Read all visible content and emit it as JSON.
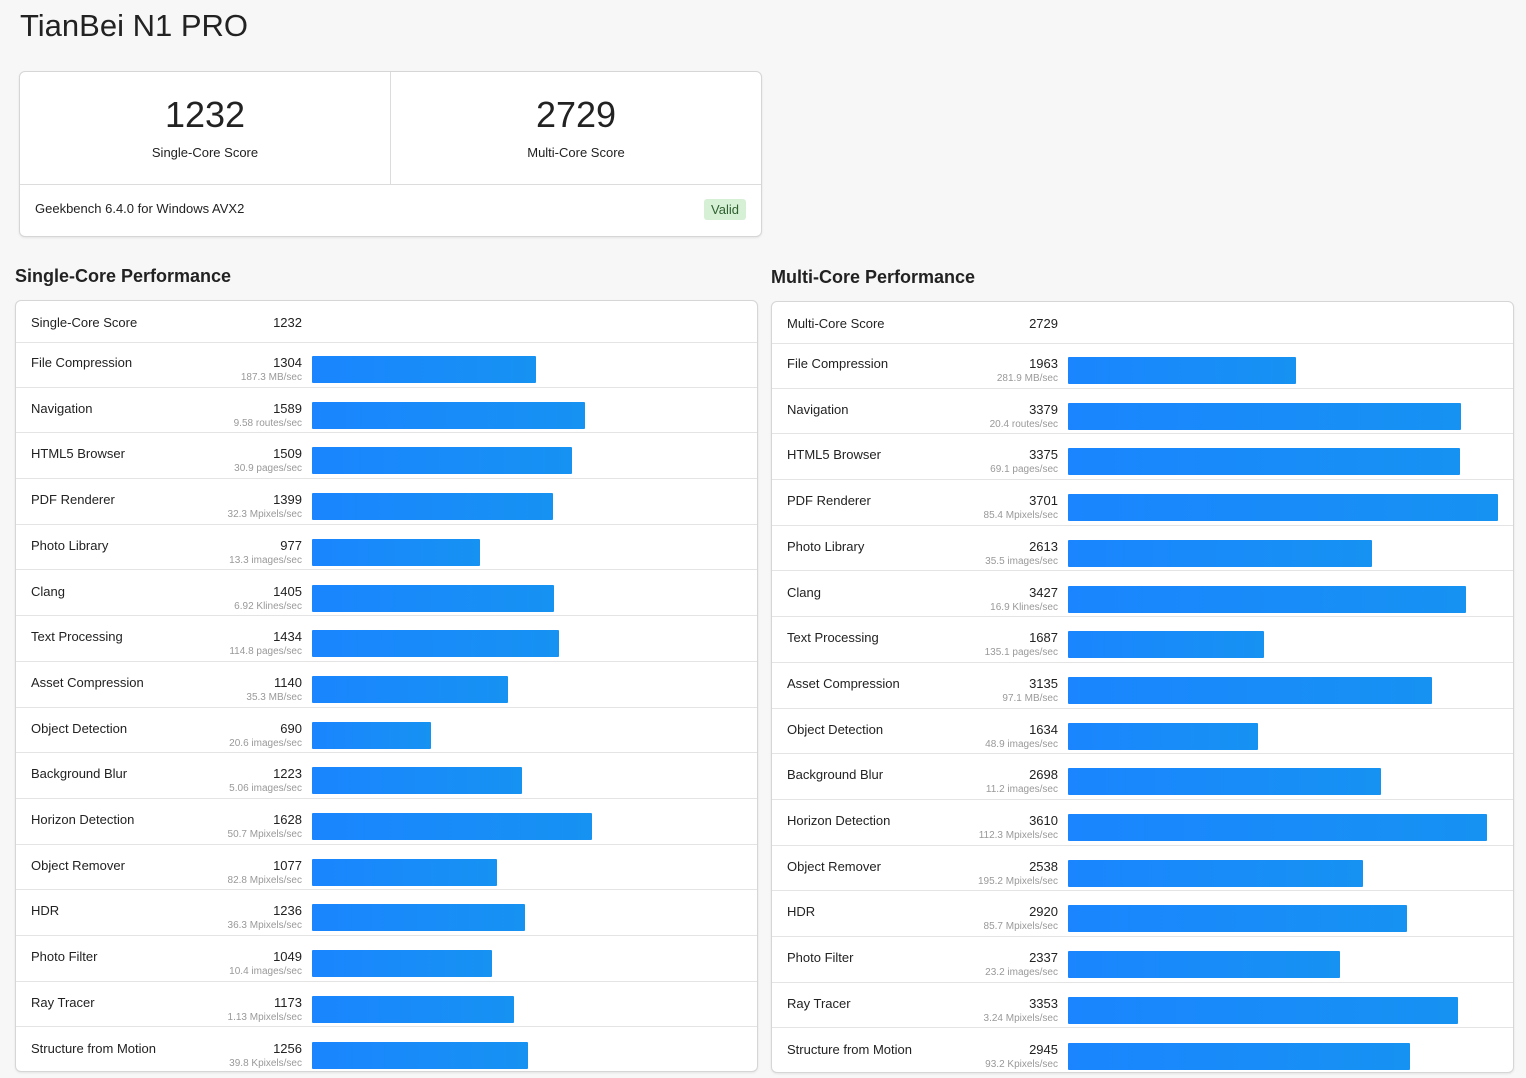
{
  "title": "TianBei N1 PRO",
  "scores": {
    "single": {
      "value": "1232",
      "label": "Single-Core Score"
    },
    "multi": {
      "value": "2729",
      "label": "Multi-Core Score"
    },
    "version": "Geekbench 6.4.0 for Windows AVX2",
    "status": "Valid"
  },
  "single_core": {
    "title": "Single-Core Performance",
    "header": {
      "name": "Single-Core Score",
      "score": "1232"
    },
    "max_score": 2500,
    "tests": [
      {
        "name": "File Compression",
        "score": 1304,
        "unit": "187.3 MB/sec"
      },
      {
        "name": "Navigation",
        "score": 1589,
        "unit": "9.58 routes/sec"
      },
      {
        "name": "HTML5 Browser",
        "score": 1509,
        "unit": "30.9 pages/sec"
      },
      {
        "name": "PDF Renderer",
        "score": 1399,
        "unit": "32.3 Mpixels/sec"
      },
      {
        "name": "Photo Library",
        "score": 977,
        "unit": "13.3 images/sec"
      },
      {
        "name": "Clang",
        "score": 1405,
        "unit": "6.92 Klines/sec"
      },
      {
        "name": "Text Processing",
        "score": 1434,
        "unit": "114.8 pages/sec"
      },
      {
        "name": "Asset Compression",
        "score": 1140,
        "unit": "35.3 MB/sec"
      },
      {
        "name": "Object Detection",
        "score": 690,
        "unit": "20.6 images/sec"
      },
      {
        "name": "Background Blur",
        "score": 1223,
        "unit": "5.06 images/sec"
      },
      {
        "name": "Horizon Detection",
        "score": 1628,
        "unit": "50.7 Mpixels/sec"
      },
      {
        "name": "Object Remover",
        "score": 1077,
        "unit": "82.8 Mpixels/sec"
      },
      {
        "name": "HDR",
        "score": 1236,
        "unit": "36.3 Mpixels/sec"
      },
      {
        "name": "Photo Filter",
        "score": 1049,
        "unit": "10.4 images/sec"
      },
      {
        "name": "Ray Tracer",
        "score": 1173,
        "unit": "1.13 Mpixels/sec"
      },
      {
        "name": "Structure from Motion",
        "score": 1256,
        "unit": "39.8 Kpixels/sec"
      }
    ]
  },
  "multi_core": {
    "title": "Multi-Core Performance",
    "header": {
      "name": "Multi-Core Score",
      "score": "2729"
    },
    "max_score": 3701,
    "tests": [
      {
        "name": "File Compression",
        "score": 1963,
        "unit": "281.9 MB/sec"
      },
      {
        "name": "Navigation",
        "score": 3379,
        "unit": "20.4 routes/sec"
      },
      {
        "name": "HTML5 Browser",
        "score": 3375,
        "unit": "69.1 pages/sec"
      },
      {
        "name": "PDF Renderer",
        "score": 3701,
        "unit": "85.4 Mpixels/sec"
      },
      {
        "name": "Photo Library",
        "score": 2613,
        "unit": "35.5 images/sec"
      },
      {
        "name": "Clang",
        "score": 3427,
        "unit": "16.9 Klines/sec"
      },
      {
        "name": "Text Processing",
        "score": 1687,
        "unit": "135.1 pages/sec"
      },
      {
        "name": "Asset Compression",
        "score": 3135,
        "unit": "97.1 MB/sec"
      },
      {
        "name": "Object Detection",
        "score": 1634,
        "unit": "48.9 images/sec"
      },
      {
        "name": "Background Blur",
        "score": 2698,
        "unit": "11.2 images/sec"
      },
      {
        "name": "Horizon Detection",
        "score": 3610,
        "unit": "112.3 Mpixels/sec"
      },
      {
        "name": "Object Remover",
        "score": 2538,
        "unit": "195.2 Mpixels/sec"
      },
      {
        "name": "HDR",
        "score": 2920,
        "unit": "85.7 Mpixels/sec"
      },
      {
        "name": "Photo Filter",
        "score": 2337,
        "unit": "23.2 images/sec"
      },
      {
        "name": "Ray Tracer",
        "score": 3353,
        "unit": "3.24 Mpixels/sec"
      },
      {
        "name": "Structure from Motion",
        "score": 2945,
        "unit": "93.2 Kpixels/sec"
      }
    ]
  },
  "colors": {
    "bar": "#1a85ff",
    "valid_bg": "#d6f0d6"
  }
}
